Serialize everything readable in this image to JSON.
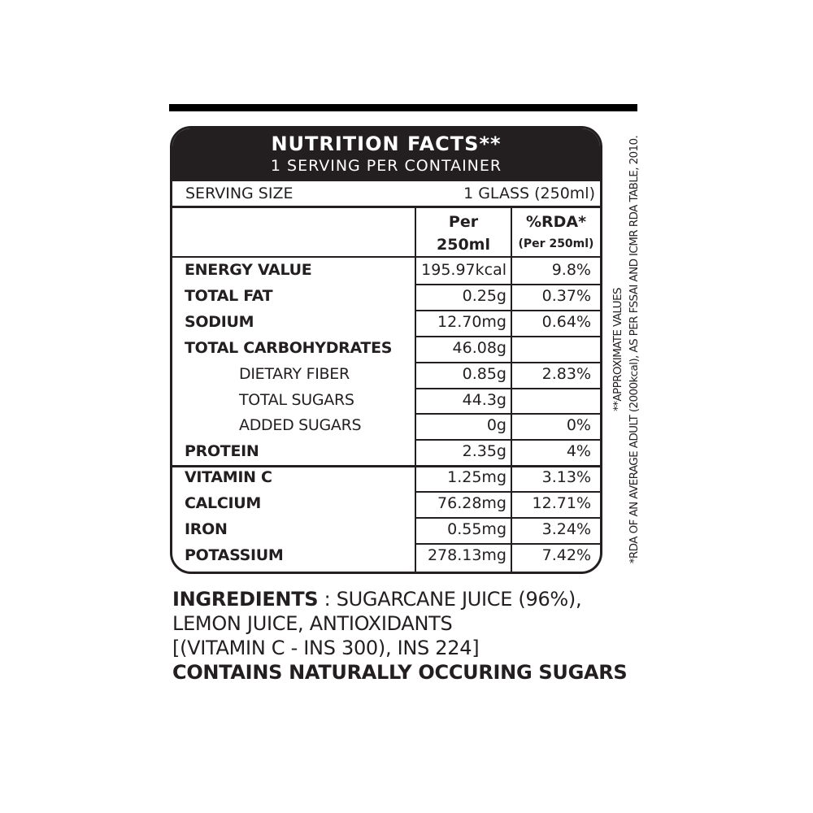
{
  "label": {
    "title": "NUTRITION FACTS**",
    "servings": "1 SERVING PER CONTAINER",
    "serving_size_label": "SERVING SIZE",
    "serving_size_value": "1 GLASS (250ml)",
    "col_per_1": "Per",
    "col_per_2": "250ml",
    "col_rda_1": "%RDA*",
    "col_rda_2": "(Per 250ml)",
    "rows": [
      {
        "name": "ENERGY VALUE",
        "value": "195.97kcal",
        "rda": "9.8%"
      },
      {
        "name": "TOTAL FAT",
        "value": "0.25g",
        "rda": "0.37%"
      },
      {
        "name": "SODIUM",
        "value": "12.70mg",
        "rda": "0.64%"
      },
      {
        "name": "TOTAL CARBOHYDRATES",
        "value": "46.08g",
        "rda": ""
      },
      {
        "name": "DIETARY FIBER",
        "value": "0.85g",
        "rda": "2.83%"
      },
      {
        "name": "TOTAL SUGARS",
        "value": "44.3g",
        "rda": ""
      },
      {
        "name": "ADDED SUGARS",
        "value": "0g",
        "rda": "0%"
      },
      {
        "name": "PROTEIN",
        "value": "2.35g",
        "rda": "4%"
      },
      {
        "name": "VITAMIN C",
        "value": "1.25mg",
        "rda": "3.13%"
      },
      {
        "name": "CALCIUM",
        "value": "76.28mg",
        "rda": "12.71%"
      },
      {
        "name": "IRON",
        "value": "0.55mg",
        "rda": "3.24%"
      },
      {
        "name": "POTASSIUM",
        "value": "278.13mg",
        "rda": "7.42%"
      }
    ]
  },
  "footnotes": {
    "approx": "**APPROXIMATE VALUES",
    "rda": "*RDA OF AN AVERAGE ADULT (2000kcal), AS PER FSSAI AND ICMR RDA TABLE, 2010."
  },
  "ingredients": {
    "label": "INGREDIENTS",
    "line1": " : SUGARCANE JUICE (96%),",
    "line2": "LEMON JUICE, ANTIOXIDANTS",
    "line3": "[(VITAMIN C - INS 300), INS 224]",
    "line4": "CONTAINS NATURALLY OCCURING SUGARS"
  }
}
